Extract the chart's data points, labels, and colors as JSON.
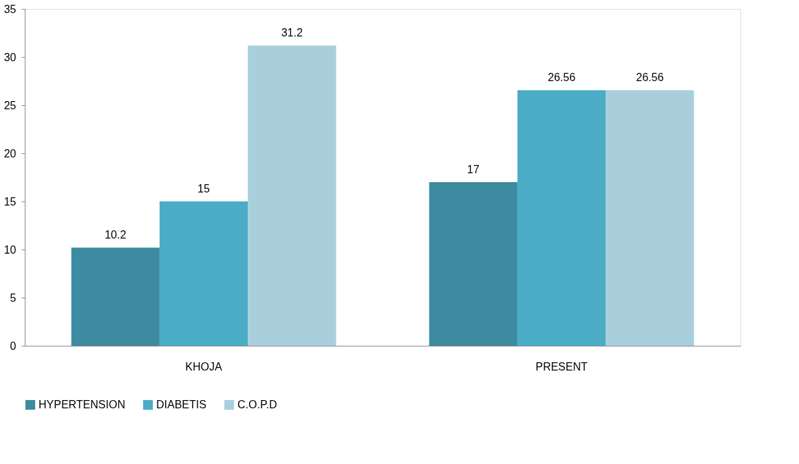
{
  "chart_data": {
    "type": "bar",
    "categories": [
      "KHOJA",
      "PRESENT"
    ],
    "series": [
      {
        "name": "HYPERTENSION",
        "color": "#3c8ba1",
        "values": [
          10.2,
          17
        ]
      },
      {
        "name": "DIABETIS",
        "color": "#4bacc6",
        "values": [
          15,
          26.56
        ]
      },
      {
        "name": "C.O.P.D",
        "color": "#a9cfdc",
        "values": [
          31.2,
          26.56
        ]
      }
    ],
    "ylim": [
      0,
      35
    ],
    "yticks": [
      0,
      5,
      10,
      15,
      20,
      25,
      30,
      35
    ],
    "grid": false,
    "legend": "bottom",
    "data_labels": true
  }
}
